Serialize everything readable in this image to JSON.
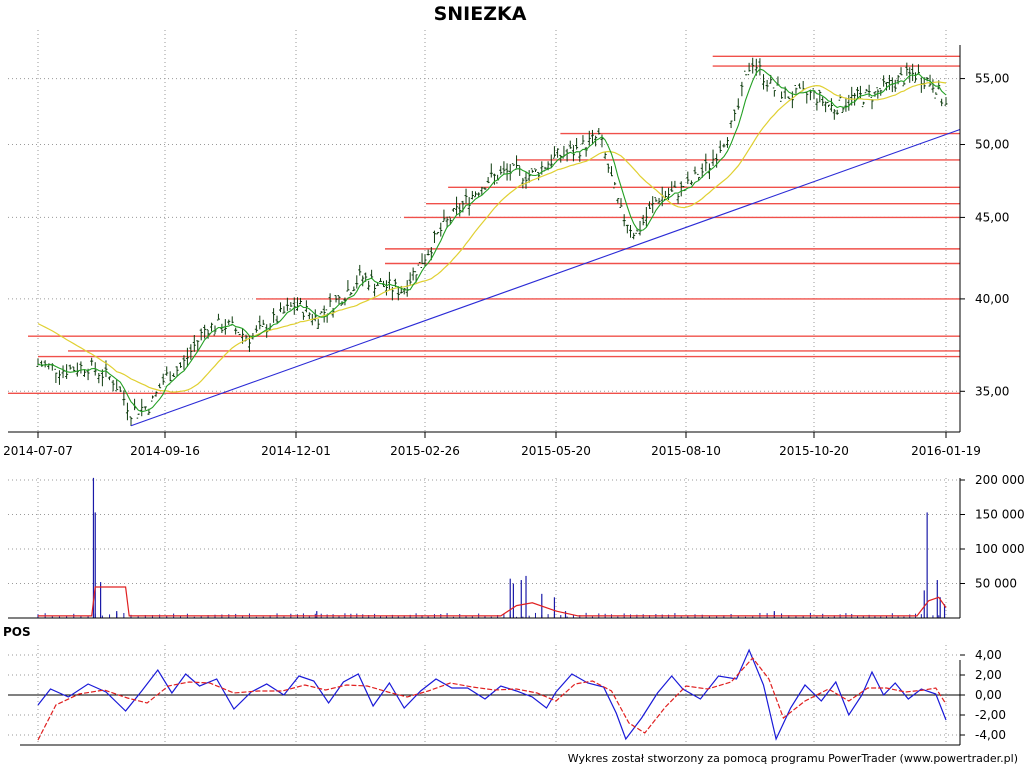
{
  "chart_data": [
    {
      "type": "candlestick",
      "title": "SNIEZKA",
      "ylim": [
        33,
        59
      ],
      "y_scale": "log",
      "y_ticks": [
        "35,00",
        "40,00",
        "45,00",
        "50,00",
        "55,00"
      ],
      "y_tick_values": [
        35,
        40,
        45,
        50,
        55
      ],
      "x_ticks": [
        "2014-07-07",
        "2014-09-16",
        "2014-12-01",
        "2015-02-26",
        "2015-05-20",
        "2015-08-10",
        "2015-10-20",
        "2016-01-19"
      ],
      "grid": true,
      "close_series": [
        {
          "d": "2014-07-07",
          "v": 36.4
        },
        {
          "d": "2014-07-21",
          "v": 36.1
        },
        {
          "d": "2014-08-04",
          "v": 36.3
        },
        {
          "d": "2014-08-18",
          "v": 35.6
        },
        {
          "d": "2014-08-28",
          "v": 34.0
        },
        {
          "d": "2014-09-08",
          "v": 34.3
        },
        {
          "d": "2014-09-16",
          "v": 35.7
        },
        {
          "d": "2014-09-26",
          "v": 36.3
        },
        {
          "d": "2014-10-10",
          "v": 38.4
        },
        {
          "d": "2014-10-22",
          "v": 38.5
        },
        {
          "d": "2014-11-05",
          "v": 37.8
        },
        {
          "d": "2014-11-19",
          "v": 38.8
        },
        {
          "d": "2014-12-01",
          "v": 39.7
        },
        {
          "d": "2014-12-15",
          "v": 38.9
        },
        {
          "d": "2015-01-02",
          "v": 40.2
        },
        {
          "d": "2015-01-14",
          "v": 41.3
        },
        {
          "d": "2015-01-28",
          "v": 40.8
        },
        {
          "d": "2015-02-11",
          "v": 40.5
        },
        {
          "d": "2015-02-26",
          "v": 42.5
        },
        {
          "d": "2015-03-10",
          "v": 44.4
        },
        {
          "d": "2015-03-24",
          "v": 46.0
        },
        {
          "d": "2015-04-07",
          "v": 47.5
        },
        {
          "d": "2015-04-21",
          "v": 48.1
        },
        {
          "d": "2015-05-05",
          "v": 47.8
        },
        {
          "d": "2015-05-20",
          "v": 49.1
        },
        {
          "d": "2015-06-03",
          "v": 49.6
        },
        {
          "d": "2015-06-17",
          "v": 50.6
        },
        {
          "d": "2015-06-30",
          "v": 45.4
        },
        {
          "d": "2015-07-10",
          "v": 43.9
        },
        {
          "d": "2015-07-24",
          "v": 46.3
        },
        {
          "d": "2015-08-10",
          "v": 46.9
        },
        {
          "d": "2015-08-24",
          "v": 48.6
        },
        {
          "d": "2015-09-07",
          "v": 51.8
        },
        {
          "d": "2015-09-16",
          "v": 56.6
        },
        {
          "d": "2015-09-28",
          "v": 54.2
        },
        {
          "d": "2015-10-08",
          "v": 53.6
        },
        {
          "d": "2015-10-20",
          "v": 53.8
        },
        {
          "d": "2015-11-03",
          "v": 52.7
        },
        {
          "d": "2015-11-17",
          "v": 53.5
        },
        {
          "d": "2015-12-01",
          "v": 53.7
        },
        {
          "d": "2015-12-15",
          "v": 54.7
        },
        {
          "d": "2015-12-29",
          "v": 55.4
        },
        {
          "d": "2016-01-12",
          "v": 54.6
        },
        {
          "d": "2016-01-19",
          "v": 52.9
        }
      ],
      "resistance_levels": [
        34.9,
        36.8,
        37.1,
        37.9,
        40.0,
        42.1,
        43.0,
        45.0,
        45.9,
        47.0,
        48.9,
        50.8,
        56.0,
        56.8
      ],
      "trendline": {
        "from": {
          "d": "2014-08-28",
          "v": 33.3
        },
        "to": {
          "d": "2016-01-19",
          "v": 51.1
        }
      },
      "colors": {
        "candles": "#0d3b0d",
        "short_ma": "#23a023",
        "long_ma": "#e0d032",
        "levels": "#f0504a",
        "trendline": "#2b2bd6"
      }
    },
    {
      "type": "bar",
      "name": "volume",
      "ylim": [
        0,
        200000
      ],
      "y_ticks": [
        "50 000",
        "100 000",
        "150 000",
        "200 000"
      ],
      "y_tick_values": [
        50000,
        100000,
        150000,
        200000
      ],
      "spikes": [
        {
          "d": "2014-08-07",
          "v": 203000
        },
        {
          "d": "2014-08-08",
          "v": 153000
        },
        {
          "d": "2014-08-11",
          "v": 52000
        },
        {
          "d": "2014-08-20",
          "v": 10000
        },
        {
          "d": "2014-12-15",
          "v": 10000
        },
        {
          "d": "2015-04-21",
          "v": 57000
        },
        {
          "d": "2015-04-23",
          "v": 50000
        },
        {
          "d": "2015-04-28",
          "v": 55000
        },
        {
          "d": "2015-05-01",
          "v": 61000
        },
        {
          "d": "2015-05-11",
          "v": 35000
        },
        {
          "d": "2015-05-19",
          "v": 30000
        },
        {
          "d": "2015-05-26",
          "v": 10000
        },
        {
          "d": "2015-09-28",
          "v": 10000
        },
        {
          "d": "2016-01-04",
          "v": 40000
        },
        {
          "d": "2016-01-06",
          "v": 153000
        },
        {
          "d": "2016-01-13",
          "v": 55000
        },
        {
          "d": "2016-01-15",
          "v": 30000
        },
        {
          "d": "2016-01-18",
          "v": 20000
        }
      ],
      "moving_average": [
        {
          "d": "2014-07-07",
          "v": 3000
        },
        {
          "d": "2014-08-06",
          "v": 3000
        },
        {
          "d": "2014-08-08",
          "v": 45000
        },
        {
          "d": "2014-08-25",
          "v": 45000
        },
        {
          "d": "2014-08-27",
          "v": 3000
        },
        {
          "d": "2015-04-15",
          "v": 3000
        },
        {
          "d": "2015-04-25",
          "v": 18000
        },
        {
          "d": "2015-05-05",
          "v": 22000
        },
        {
          "d": "2015-05-20",
          "v": 10000
        },
        {
          "d": "2015-06-03",
          "v": 3000
        },
        {
          "d": "2015-12-30",
          "v": 3000
        },
        {
          "d": "2016-01-07",
          "v": 25000
        },
        {
          "d": "2016-01-14",
          "v": 30000
        },
        {
          "d": "2016-01-19",
          "v": 15000
        }
      ],
      "colors": {
        "bars": "#1a1aa8",
        "moving_average": "#e02020"
      }
    },
    {
      "type": "line",
      "title": "POS",
      "ylim": [
        -5,
        5
      ],
      "y_ticks": [
        "-4,00",
        "-2,00",
        "0,00",
        "2,00",
        "4,00"
      ],
      "y_tick_values": [
        -4,
        -2,
        0,
        2,
        4
      ],
      "series": [
        {
          "values": [
            {
              "d": "2014-07-07",
              "v": -1.0
            },
            {
              "d": "2014-07-14",
              "v": 0.6
            },
            {
              "d": "2014-07-24",
              "v": -0.2
            },
            {
              "d": "2014-08-04",
              "v": 1.1
            },
            {
              "d": "2014-08-14",
              "v": 0.3
            },
            {
              "d": "2014-08-25",
              "v": -1.6
            },
            {
              "d": "2014-09-03",
              "v": 0.4
            },
            {
              "d": "2014-09-12",
              "v": 2.5
            },
            {
              "d": "2014-09-20",
              "v": 0.2
            },
            {
              "d": "2014-09-28",
              "v": 2.1
            },
            {
              "d": "2014-10-06",
              "v": 0.9
            },
            {
              "d": "2014-10-16",
              "v": 1.6
            },
            {
              "d": "2014-10-26",
              "v": -1.4
            },
            {
              "d": "2014-11-05",
              "v": 0.3
            },
            {
              "d": "2014-11-14",
              "v": 1.1
            },
            {
              "d": "2014-11-24",
              "v": 0.0
            },
            {
              "d": "2014-12-03",
              "v": 1.9
            },
            {
              "d": "2014-12-13",
              "v": 1.4
            },
            {
              "d": "2014-12-23",
              "v": -0.8
            },
            {
              "d": "2015-01-02",
              "v": 1.3
            },
            {
              "d": "2015-01-12",
              "v": 2.1
            },
            {
              "d": "2015-01-22",
              "v": -1.1
            },
            {
              "d": "2015-02-02",
              "v": 1.2
            },
            {
              "d": "2015-02-12",
              "v": -1.3
            },
            {
              "d": "2015-02-23",
              "v": 0.4
            },
            {
              "d": "2015-03-05",
              "v": 1.6
            },
            {
              "d": "2015-03-15",
              "v": 0.7
            },
            {
              "d": "2015-03-25",
              "v": 0.7
            },
            {
              "d": "2015-04-05",
              "v": -0.4
            },
            {
              "d": "2015-04-15",
              "v": 0.9
            },
            {
              "d": "2015-04-25",
              "v": 0.4
            },
            {
              "d": "2015-05-05",
              "v": -0.2
            },
            {
              "d": "2015-05-14",
              "v": -1.3
            },
            {
              "d": "2015-05-20",
              "v": 0.3
            },
            {
              "d": "2015-05-30",
              "v": 2.1
            },
            {
              "d": "2015-06-09",
              "v": 1.2
            },
            {
              "d": "2015-06-19",
              "v": 0.8
            },
            {
              "d": "2015-06-27",
              "v": -1.8
            },
            {
              "d": "2015-07-03",
              "v": -4.4
            },
            {
              "d": "2015-07-13",
              "v": -2.3
            },
            {
              "d": "2015-07-23",
              "v": 0.2
            },
            {
              "d": "2015-08-01",
              "v": 1.9
            },
            {
              "d": "2015-08-08",
              "v": 0.6
            },
            {
              "d": "2015-08-18",
              "v": -0.4
            },
            {
              "d": "2015-08-28",
              "v": 1.9
            },
            {
              "d": "2015-09-07",
              "v": 1.6
            },
            {
              "d": "2015-09-14",
              "v": 4.5
            },
            {
              "d": "2015-09-22",
              "v": 1.0
            },
            {
              "d": "2015-09-29",
              "v": -4.4
            },
            {
              "d": "2015-10-07",
              "v": -1.3
            },
            {
              "d": "2015-10-15",
              "v": 1.0
            },
            {
              "d": "2015-10-25",
              "v": -0.6
            },
            {
              "d": "2015-11-04",
              "v": 1.3
            },
            {
              "d": "2015-11-13",
              "v": -2.0
            },
            {
              "d": "2015-11-22",
              "v": 0.0
            },
            {
              "d": "2015-11-29",
              "v": 2.3
            },
            {
              "d": "2015-12-07",
              "v": 0.0
            },
            {
              "d": "2015-12-15",
              "v": 1.2
            },
            {
              "d": "2015-12-24",
              "v": -0.4
            },
            {
              "d": "2016-01-02",
              "v": 0.6
            },
            {
              "d": "2016-01-12",
              "v": 0.1
            },
            {
              "d": "2016-01-19",
              "v": -2.5
            }
          ],
          "color": "#1a1ad8"
        },
        {
          "values": [
            {
              "d": "2014-07-07",
              "v": -4.5
            },
            {
              "d": "2014-07-17",
              "v": -1.0
            },
            {
              "d": "2014-07-30",
              "v": 0.1
            },
            {
              "d": "2014-08-13",
              "v": 0.5
            },
            {
              "d": "2014-08-26",
              "v": -0.3
            },
            {
              "d": "2014-09-06",
              "v": -0.8
            },
            {
              "d": "2014-09-18",
              "v": 0.9
            },
            {
              "d": "2014-09-30",
              "v": 1.3
            },
            {
              "d": "2014-10-12",
              "v": 1.2
            },
            {
              "d": "2014-10-26",
              "v": 0.2
            },
            {
              "d": "2014-11-09",
              "v": 0.4
            },
            {
              "d": "2014-11-23",
              "v": 0.4
            },
            {
              "d": "2014-12-07",
              "v": 1.0
            },
            {
              "d": "2014-12-21",
              "v": 0.5
            },
            {
              "d": "2015-01-04",
              "v": 1.0
            },
            {
              "d": "2015-01-18",
              "v": 0.9
            },
            {
              "d": "2015-02-01",
              "v": 0.3
            },
            {
              "d": "2015-02-14",
              "v": -0.2
            },
            {
              "d": "2015-02-28",
              "v": 0.4
            },
            {
              "d": "2015-03-14",
              "v": 1.2
            },
            {
              "d": "2015-03-28",
              "v": 0.8
            },
            {
              "d": "2015-04-11",
              "v": 0.5
            },
            {
              "d": "2015-04-25",
              "v": 0.6
            },
            {
              "d": "2015-05-08",
              "v": 0.2
            },
            {
              "d": "2015-05-20",
              "v": -0.6
            },
            {
              "d": "2015-06-01",
              "v": 1.1
            },
            {
              "d": "2015-06-12",
              "v": 1.4
            },
            {
              "d": "2015-06-24",
              "v": 0.4
            },
            {
              "d": "2015-07-05",
              "v": -2.8
            },
            {
              "d": "2015-07-15",
              "v": -3.8
            },
            {
              "d": "2015-07-28",
              "v": -1.2
            },
            {
              "d": "2015-08-10",
              "v": 0.9
            },
            {
              "d": "2015-08-22",
              "v": 0.6
            },
            {
              "d": "2015-09-04",
              "v": 1.3
            },
            {
              "d": "2015-09-16",
              "v": 3.7
            },
            {
              "d": "2015-09-25",
              "v": 1.6
            },
            {
              "d": "2015-10-03",
              "v": -2.3
            },
            {
              "d": "2015-10-15",
              "v": -0.6
            },
            {
              "d": "2015-10-30",
              "v": 0.6
            },
            {
              "d": "2015-11-13",
              "v": -0.6
            },
            {
              "d": "2015-11-26",
              "v": 0.7
            },
            {
              "d": "2015-12-09",
              "v": 0.7
            },
            {
              "d": "2015-12-22",
              "v": 0.3
            },
            {
              "d": "2016-01-04",
              "v": 0.5
            },
            {
              "d": "2016-01-12",
              "v": 0.7
            },
            {
              "d": "2016-01-19",
              "v": -0.9
            }
          ],
          "color": "#e02020"
        }
      ]
    }
  ],
  "footer": {
    "credit": "Wykres został stworzony za pomocą programu PowerTrader (www.powertrader.pl)"
  }
}
